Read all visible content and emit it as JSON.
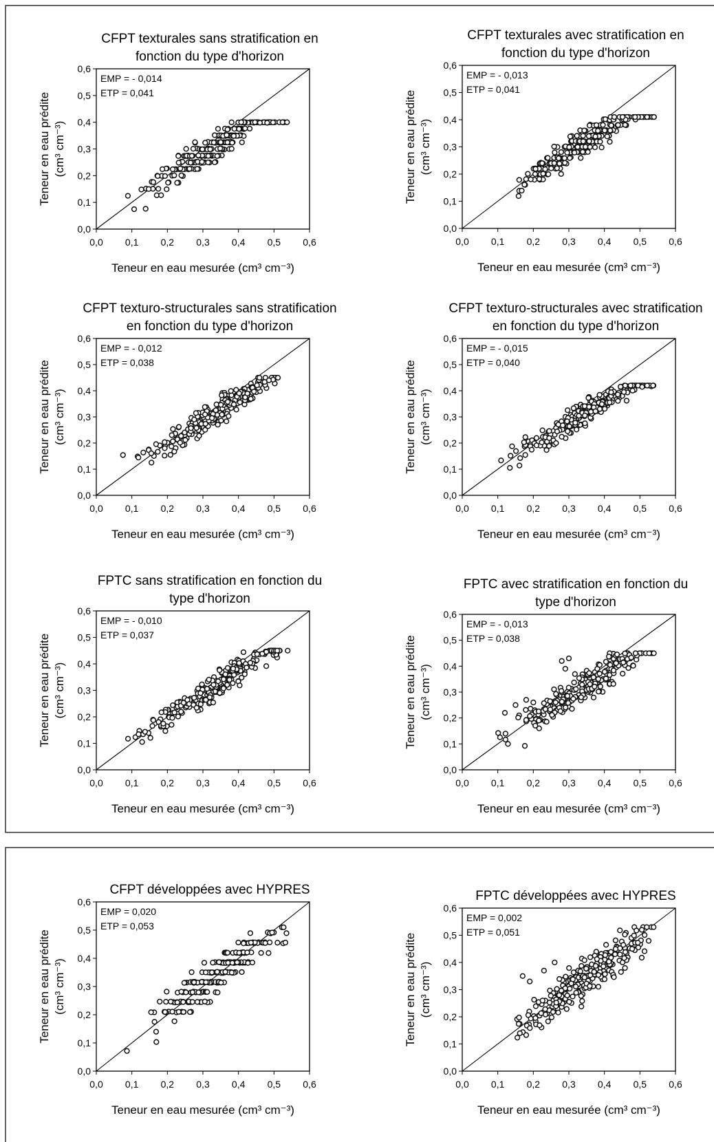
{
  "figure": {
    "xlabel": "Teneur en eau mesurée (cm³ cm⁻³)",
    "ylabel_line1": "Teneur en eau prédite",
    "ylabel_line2": "(cm³ cm⁻³)"
  },
  "chart_data": [
    {
      "type": "scatter",
      "title_lines": [
        "CFPT texturales sans stratification en",
        "fonction du type d'horizon"
      ],
      "emp": "EMP = - 0,014",
      "etp": "ETP = 0,041",
      "xlim": [
        0,
        0.6
      ],
      "ylim": [
        0,
        0.6
      ],
      "ticks": [
        "0,0",
        "0,1",
        "0,2",
        "0,3",
        "0,4",
        "0,5",
        "0,6"
      ],
      "reference_line": "1:1",
      "n_points": 230,
      "x_range": [
        0.06,
        0.54
      ],
      "y_range": [
        0.07,
        0.4
      ],
      "seed": 101,
      "slope": 0.83,
      "intercept": 0.03,
      "spread": 0.032,
      "steps": 0.025,
      "outliers": []
    },
    {
      "type": "scatter",
      "title_lines": [
        "CFPT texturales avec stratification en",
        "fonction du type d'horizon"
      ],
      "emp": "EMP = - 0,013",
      "etp": "ETP = 0,041",
      "xlim": [
        0,
        0.6
      ],
      "ylim": [
        0,
        0.6
      ],
      "ticks": [
        "0,0",
        "0,1",
        "0,2",
        "0,3",
        "0,4",
        "0,5",
        "0,6"
      ],
      "reference_line": "1:1",
      "n_points": 230,
      "x_range": [
        0.06,
        0.54
      ],
      "y_range": [
        0.08,
        0.41
      ],
      "seed": 202,
      "slope": 0.84,
      "intercept": 0.03,
      "spread": 0.03,
      "steps": 0.02,
      "outliers": []
    },
    {
      "type": "scatter",
      "title_lines": [
        "CFPT texturo-structurales sans stratification",
        "en fonction du type d'horizon"
      ],
      "emp": "EMP = - 0,012",
      "etp": "ETP = 0,038",
      "xlim": [
        0,
        0.6
      ],
      "ylim": [
        0,
        0.6
      ],
      "ticks": [
        "0,0",
        "0,1",
        "0,2",
        "0,3",
        "0,4",
        "0,5",
        "0,6"
      ],
      "reference_line": "1:1",
      "n_points": 230,
      "x_range": [
        0.06,
        0.54
      ],
      "y_range": [
        0.07,
        0.45
      ],
      "seed": 303,
      "slope": 0.88,
      "intercept": 0.02,
      "spread": 0.03,
      "steps": 0,
      "outliers": []
    },
    {
      "type": "scatter",
      "title_lines": [
        "CFPT texturo-structurales avec stratification",
        "en fonction du type d'horizon"
      ],
      "emp": "EMP = - 0,015",
      "etp": "ETP = 0,040",
      "xlim": [
        0,
        0.6
      ],
      "ylim": [
        0,
        0.6
      ],
      "ticks": [
        "0,0",
        "0,1",
        "0,2",
        "0,3",
        "0,4",
        "0,5",
        "0,6"
      ],
      "reference_line": "1:1",
      "n_points": 230,
      "x_range": [
        0.06,
        0.54
      ],
      "y_range": [
        0.07,
        0.42
      ],
      "seed": 404,
      "slope": 0.85,
      "intercept": 0.02,
      "spread": 0.03,
      "steps": 0,
      "outliers": []
    },
    {
      "type": "scatter",
      "title_lines": [
        "FPTC sans stratification en fonction du",
        "type d'horizon"
      ],
      "emp": "EMP = - 0,010",
      "etp": "ETP = 0,037",
      "xlim": [
        0,
        0.6
      ],
      "ylim": [
        0,
        0.6
      ],
      "ticks": [
        "0,0",
        "0,1",
        "0,2",
        "0,3",
        "0,4",
        "0,5",
        "0,6"
      ],
      "reference_line": "1:1",
      "n_points": 240,
      "x_range": [
        0.06,
        0.54
      ],
      "y_range": [
        0.04,
        0.45
      ],
      "seed": 505,
      "slope": 0.88,
      "intercept": 0.02,
      "spread": 0.03,
      "steps": 0,
      "outliers": []
    },
    {
      "type": "scatter",
      "title_lines": [
        "FPTC avec stratification en fonction du",
        "type d'horizon"
      ],
      "emp": "EMP = - 0,013",
      "etp": "ETP = 0,038",
      "xlim": [
        0,
        0.6
      ],
      "ylim": [
        0,
        0.6
      ],
      "ticks": [
        "0,0",
        "0,1",
        "0,2",
        "0,3",
        "0,4",
        "0,5",
        "0,6"
      ],
      "reference_line": "1:1",
      "n_points": 240,
      "x_range": [
        0.06,
        0.54
      ],
      "y_range": [
        0.06,
        0.45
      ],
      "seed": 606,
      "slope": 0.88,
      "intercept": 0.02,
      "spread": 0.035,
      "steps": 0,
      "outliers": [
        [
          0.12,
          0.22
        ],
        [
          0.15,
          0.25
        ],
        [
          0.18,
          0.27
        ],
        [
          0.2,
          0.26
        ],
        [
          0.28,
          0.42
        ],
        [
          0.3,
          0.43
        ],
        [
          0.29,
          0.39
        ]
      ]
    },
    {
      "type": "scatter",
      "title_lines": [
        "CFPT développées avec HYPRES"
      ],
      "emp": "EMP = 0,020",
      "etp": "ETP = 0,053",
      "xlim": [
        0,
        0.6
      ],
      "ylim": [
        0,
        0.6
      ],
      "ticks": [
        "0,0",
        "0,1",
        "0,2",
        "0,3",
        "0,4",
        "0,5",
        "0,6"
      ],
      "reference_line": "1:1",
      "n_points": 230,
      "x_range": [
        0.06,
        0.54
      ],
      "y_range": [
        0.06,
        0.51
      ],
      "seed": 707,
      "slope": 0.98,
      "intercept": 0.01,
      "spread": 0.04,
      "steps": 0.035,
      "outliers": []
    },
    {
      "type": "scatter",
      "title_lines": [
        "FPTC développées avec HYPRES"
      ],
      "emp": "EMP = 0,002",
      "etp": "ETP = 0,051",
      "xlim": [
        0,
        0.6
      ],
      "ylim": [
        0,
        0.6
      ],
      "ticks": [
        "0,0",
        "0,1",
        "0,2",
        "0,3",
        "0,4",
        "0,5",
        "0,6"
      ],
      "reference_line": "1:1",
      "n_points": 260,
      "x_range": [
        0.06,
        0.54
      ],
      "y_range": [
        0.02,
        0.53
      ],
      "seed": 808,
      "slope": 0.96,
      "intercept": 0.01,
      "spread": 0.045,
      "steps": 0,
      "outliers": [
        [
          0.17,
          0.35
        ],
        [
          0.19,
          0.33
        ],
        [
          0.26,
          0.4
        ],
        [
          0.23,
          0.37
        ]
      ]
    }
  ]
}
